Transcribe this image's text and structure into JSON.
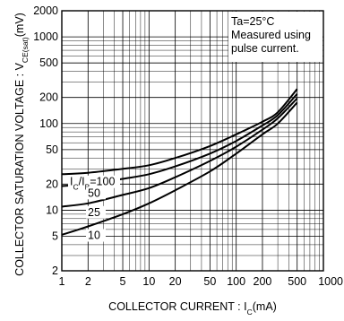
{
  "chart_data": {
    "type": "line",
    "xscale": "log",
    "yscale": "log",
    "xlim": [
      1,
      1000
    ],
    "ylim": [
      2,
      2000
    ],
    "grid": true,
    "xlabel": {
      "main": "COLLECTOR  CURRENT : I",
      "sub": "C",
      "tail": "(mA)"
    },
    "ylabel": {
      "main": "COLLECTOR  SATURATION  VOLTAGE : V",
      "sub": "CE(sat)",
      "tail": "(mV)"
    },
    "x_ticks": [
      {
        "v": 1,
        "label": "1"
      },
      {
        "v": 2,
        "label": "2"
      },
      {
        "v": 5,
        "label": "5"
      },
      {
        "v": 10,
        "label": "10"
      },
      {
        "v": 20,
        "label": "20"
      },
      {
        "v": 50,
        "label": "50"
      },
      {
        "v": 100,
        "label": "100"
      },
      {
        "v": 200,
        "label": "200"
      },
      {
        "v": 500,
        "label": "500"
      },
      {
        "v": 1000,
        "label": "1000"
      }
    ],
    "y_ticks": [
      {
        "v": 2,
        "label": "2"
      },
      {
        "v": 5,
        "label": "5"
      },
      {
        "v": 10,
        "label": "10"
      },
      {
        "v": 20,
        "label": "20"
      },
      {
        "v": 50,
        "label": "50"
      },
      {
        "v": 100,
        "label": "100"
      },
      {
        "v": 200,
        "label": "200"
      },
      {
        "v": 500,
        "label": "500"
      },
      {
        "v": 1000,
        "label": "1000"
      },
      {
        "v": 2000,
        "label": "2000"
      }
    ],
    "annotation": [
      "Ta=25°C",
      "Measured using",
      "pulse current."
    ],
    "series_label_prefix": {
      "main": "I",
      "sub1": "C",
      "mid": "/I",
      "sub2": "B",
      "tail": "="
    },
    "series": [
      {
        "name": "100",
        "x": [
          1,
          2,
          5,
          10,
          20,
          50,
          100,
          200,
          300,
          500
        ],
        "y": [
          26,
          27,
          30,
          33,
          40,
          55,
          75,
          105,
          135,
          250
        ]
      },
      {
        "name": "50",
        "x": [
          1,
          2,
          5,
          10,
          20,
          50,
          100,
          200,
          300,
          500
        ],
        "y": [
          19,
          20,
          23,
          26,
          32,
          45,
          63,
          95,
          125,
          220
        ]
      },
      {
        "name": "25",
        "x": [
          1,
          2,
          5,
          10,
          20,
          50,
          100,
          200,
          300,
          500
        ],
        "y": [
          11,
          12,
          15,
          18,
          24,
          37,
          54,
          85,
          115,
          195
        ]
      },
      {
        "name": "10",
        "x": [
          1,
          2,
          5,
          10,
          20,
          50,
          100,
          200,
          300,
          500
        ],
        "y": [
          5.2,
          6.5,
          9,
          12,
          17,
          28,
          45,
          75,
          100,
          175
        ]
      }
    ]
  }
}
